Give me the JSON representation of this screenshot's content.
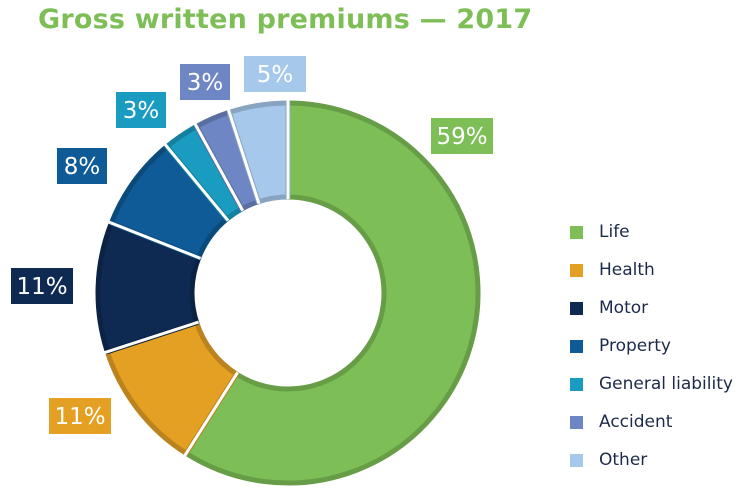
{
  "title": "Gross written premiums — 2017",
  "chart_data": {
    "type": "pie",
    "donut": true,
    "title": "Gross written premiums — 2017",
    "unit": "%",
    "legend_position": "right",
    "slices": [
      {
        "label": "Life",
        "value": 59,
        "display": "59%",
        "color": "#7dbf56"
      },
      {
        "label": "Health",
        "value": 11,
        "display": "11%",
        "color": "#e4a023"
      },
      {
        "label": "Motor",
        "value": 11,
        "display": "11%",
        "color": "#0f2a52"
      },
      {
        "label": "Property",
        "value": 8,
        "display": "8%",
        "color": "#0e5b97"
      },
      {
        "label": "General liability",
        "value": 3,
        "display": "3%",
        "color": "#1a9cc0"
      },
      {
        "label": "Accident",
        "value": 3,
        "display": "3%",
        "color": "#6e86c4"
      },
      {
        "label": "Other",
        "value": 5,
        "display": "5%",
        "color": "#a6c8ea"
      }
    ]
  }
}
